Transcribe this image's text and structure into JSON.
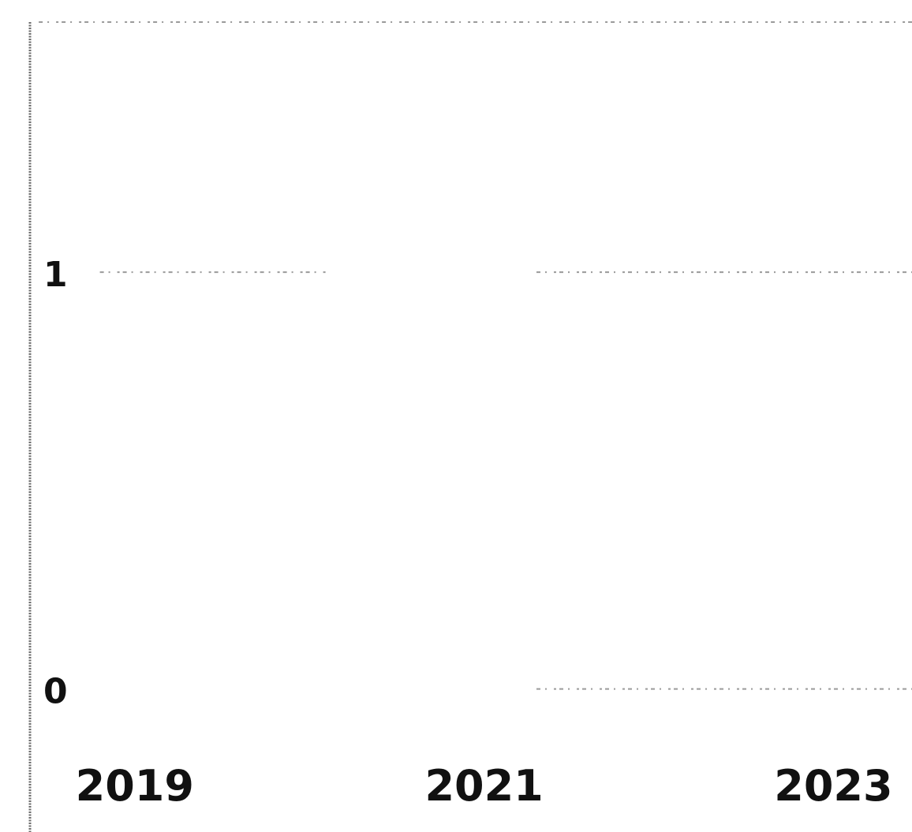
{
  "chart_data": {
    "type": "line",
    "title": "",
    "xlabel": "",
    "ylabel": "",
    "x_ticks": [
      "2019",
      "2021",
      "2023"
    ],
    "y_ticks": [
      "0",
      "1"
    ],
    "xlim": [
      2018.4,
      2023.45
    ],
    "ylim": [
      -0.05,
      1.6
    ],
    "grid": false,
    "legend": "none",
    "series": [
      {
        "color": "#9a9a9a",
        "style": "dotted",
        "segments": [
          {
            "x": [
              2018.45,
              2023.45
            ],
            "y": [
              1.6,
              1.6
            ]
          },
          {
            "x": [
              2018.8,
              2020.1
            ],
            "y": [
              1,
              1
            ]
          },
          {
            "x": [
              2021.3,
              2023.45
            ],
            "y": [
              1,
              1
            ]
          },
          {
            "x": [
              2021.3,
              2023.45
            ],
            "y": [
              0,
              0
            ]
          }
        ]
      }
    ]
  }
}
